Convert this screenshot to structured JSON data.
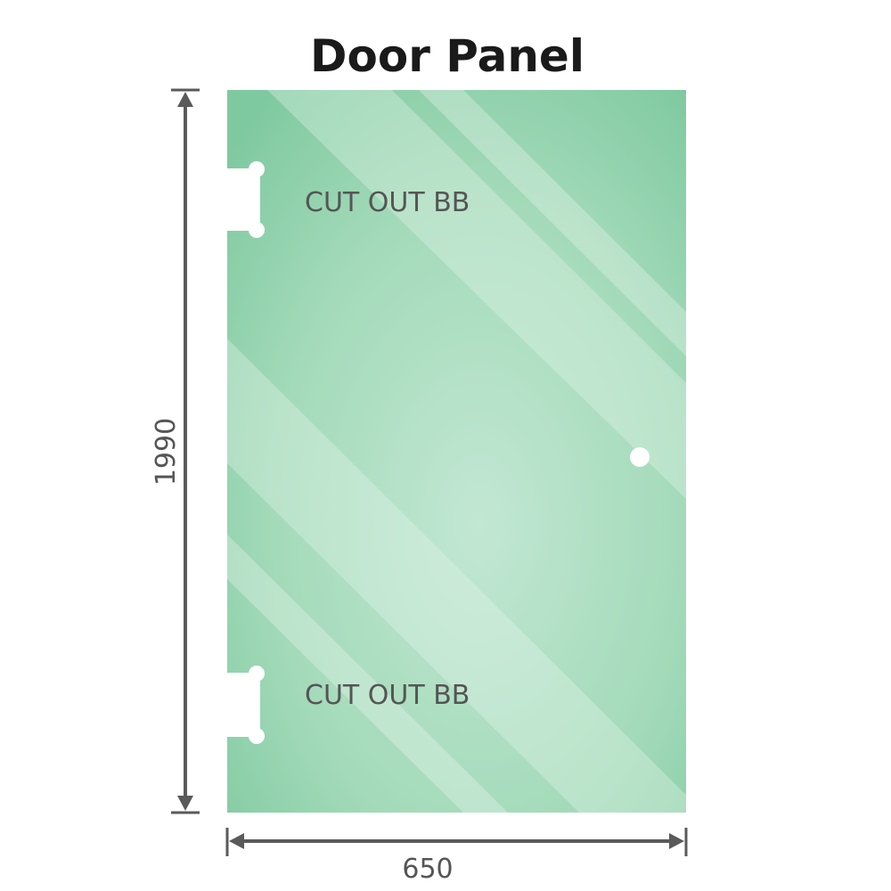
{
  "title": "Door Panel",
  "cutout_labels": [
    "CUT OUT BB",
    "CUT OUT BB"
  ],
  "dimensions": {
    "height": "1990",
    "width": "650"
  },
  "colors": {
    "glass": "#82cca2",
    "glass_light": "#c2e7d3",
    "dimension_line": "#5a5a5a"
  }
}
